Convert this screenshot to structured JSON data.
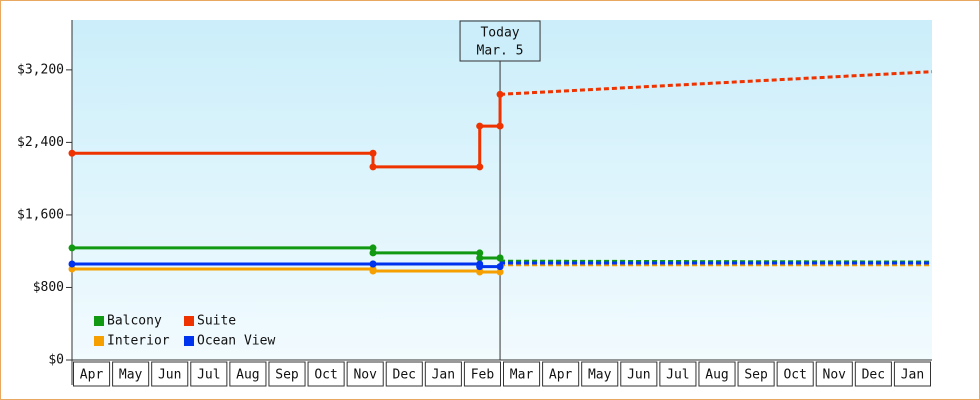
{
  "chart_data": {
    "type": "line",
    "categories": [
      "Apr",
      "May",
      "Jun",
      "Jul",
      "Aug",
      "Sep",
      "Oct",
      "Nov",
      "Dec",
      "Jan",
      "Feb",
      "Mar",
      "Apr",
      "May",
      "Jun",
      "Jul",
      "Aug",
      "Sep",
      "Oct",
      "Nov",
      "Dec",
      "Jan"
    ],
    "xlim": [
      0,
      22
    ],
    "ylim": [
      0,
      3750
    ],
    "yticks": [
      {
        "value": 0,
        "label": "$0"
      },
      {
        "value": 800,
        "label": "$800"
      },
      {
        "value": 1600,
        "label": "$1,600"
      },
      {
        "value": 2400,
        "label": "$2,400"
      },
      {
        "value": 3200,
        "label": "$3,200"
      }
    ],
    "today": {
      "x": 10.95,
      "label": "Today",
      "date": "Mar. 5"
    },
    "legend": "bottom-left",
    "series": [
      {
        "name": "Balcony",
        "color": "#119911",
        "x": [
          0,
          7.7,
          7.7,
          10.43,
          10.43,
          10.95,
          10.95
        ],
        "values": [
          1236,
          1236,
          1181,
          1181,
          1125,
          1125,
          1125
        ],
        "forecast": {
          "x": [
            10.95,
            22
          ],
          "values": [
            1090,
            1080
          ]
        }
      },
      {
        "name": "Suite",
        "color": "#ee3300",
        "x": [
          0,
          7.7,
          7.7,
          10.43,
          10.43,
          10.95,
          10.95
        ],
        "values": [
          2280,
          2280,
          2130,
          2130,
          2580,
          2580,
          2930
        ],
        "forecast": {
          "x": [
            10.95,
            22
          ],
          "values": [
            2930,
            3180
          ]
        }
      },
      {
        "name": "Interior",
        "color": "#f5a000",
        "x": [
          0,
          7.7,
          7.7,
          10.43,
          10.43,
          10.95
        ],
        "values": [
          1004,
          1004,
          982,
          982,
          970,
          970
        ],
        "forecast": {
          "x": [
            10.95,
            22
          ],
          "values": [
            1050,
            1050
          ]
        }
      },
      {
        "name": "Ocean View",
        "color": "#0033ee",
        "x": [
          0,
          7.7,
          7.7,
          10.43,
          10.43,
          10.95
        ],
        "values": [
          1059,
          1059,
          1059,
          1059,
          1030,
          1030
        ],
        "forecast": {
          "x": [
            10.95,
            22
          ],
          "values": [
            1070,
            1070
          ]
        }
      }
    ]
  }
}
